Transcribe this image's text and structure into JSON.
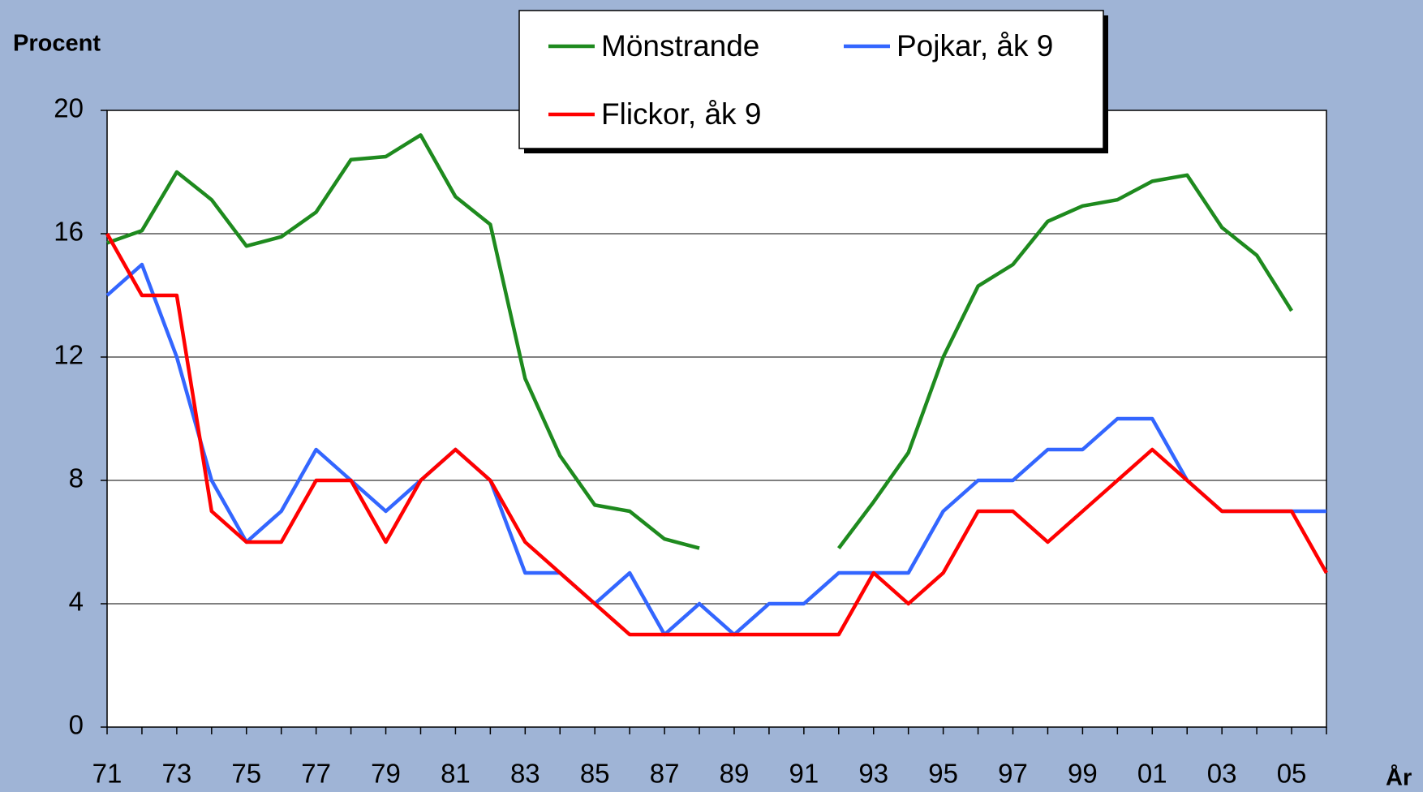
{
  "chart_data": {
    "type": "line",
    "y_label": "Procent",
    "x_label": "År",
    "categories": [
      "71",
      null,
      "73",
      null,
      "75",
      null,
      "77",
      null,
      "79",
      null,
      "81",
      null,
      "83",
      null,
      "85",
      null,
      "87",
      null,
      "89",
      null,
      "91",
      null,
      "93",
      null,
      "95",
      null,
      "97",
      null,
      "99",
      null,
      "01",
      null,
      "03",
      null,
      "05",
      null
    ],
    "series": [
      {
        "name": "Mönstrande",
        "color": "#1e8a1e",
        "values": [
          15.7,
          16.1,
          18.0,
          17.1,
          15.6,
          15.9,
          16.7,
          18.4,
          18.5,
          19.2,
          17.2,
          16.3,
          11.3,
          8.8,
          7.2,
          7.0,
          6.1,
          5.8,
          null,
          null,
          null,
          5.8,
          7.3,
          8.9,
          12.0,
          14.3,
          15.0,
          16.4,
          16.9,
          17.1,
          17.7,
          17.9,
          16.2,
          15.3,
          13.5,
          null
        ]
      },
      {
        "name": "Pojkar, åk 9",
        "color": "#3366ff",
        "values": [
          14,
          15,
          12,
          8,
          6,
          7,
          9,
          8,
          7,
          8,
          9,
          8,
          5,
          5,
          4,
          5,
          3,
          4,
          3,
          4,
          4,
          5,
          5,
          5,
          7,
          8,
          8,
          9,
          9,
          10,
          10,
          8,
          7,
          7,
          7,
          7
        ]
      },
      {
        "name": "Flickor, åk 9",
        "color": "#ff0000",
        "values": [
          16,
          14,
          14,
          7,
          6,
          6,
          8,
          8,
          6,
          8,
          9,
          8,
          6,
          5,
          4,
          3,
          3,
          3,
          3,
          3,
          3,
          3,
          5,
          4,
          5,
          7,
          7,
          6,
          7,
          8,
          9,
          8,
          7,
          7,
          7,
          5
        ]
      }
    ],
    "ylim": [
      0,
      20
    ],
    "yticks": [
      0,
      4,
      8,
      12,
      16,
      20
    ],
    "grid": true,
    "legend": "top"
  }
}
